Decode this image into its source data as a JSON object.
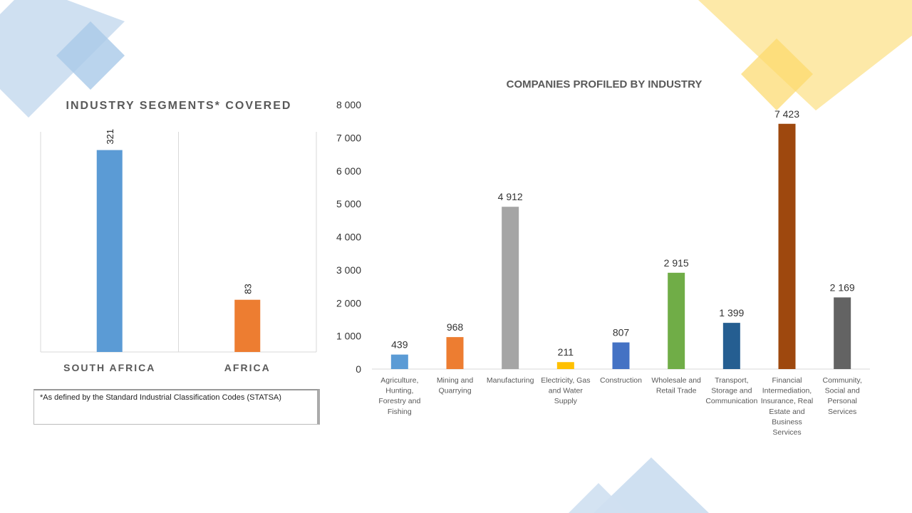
{
  "chart_data": [
    {
      "type": "bar",
      "title": "INDUSTRY SEGMENTS* COVERED",
      "categories": [
        "SOUTH AFRICA",
        "AFRICA"
      ],
      "values": [
        321,
        83
      ],
      "data_labels": [
        "321",
        "83"
      ],
      "colors": [
        "#5b9bd5",
        "#ed7d31"
      ],
      "ylim": [
        0,
        350
      ],
      "grid": false
    },
    {
      "type": "bar",
      "title": "COMPANIES PROFILED BY INDUSTRY",
      "categories": [
        "Agriculture, Hunting, Forestry and Fishing",
        "Mining and Quarrying",
        "Manufacturing",
        "Electricity, Gas and Water Supply",
        "Construction",
        "Wholesale and Retail Trade",
        "Transport, Storage and Communication",
        "Financial Intermediation, Insurance, Real Estate and Business Services",
        "Community, Social and Personal Services"
      ],
      "category_lines": [
        [
          "Agriculture,",
          "Hunting,",
          "Forestry and",
          "Fishing"
        ],
        [
          "Mining and",
          "Quarrying"
        ],
        [
          "Manufacturing"
        ],
        [
          "Electricity, Gas",
          "and Water",
          "Supply"
        ],
        [
          "Construction"
        ],
        [
          "Wholesale and",
          "Retail Trade"
        ],
        [
          "Transport,",
          "Storage and",
          "Communication"
        ],
        [
          "Financial",
          "Intermediation,",
          "Insurance, Real",
          "Estate and",
          "Business",
          "Services"
        ],
        [
          "Community,",
          "Social and",
          "Personal",
          "Services"
        ]
      ],
      "values": [
        439,
        968,
        4912,
        211,
        807,
        2915,
        1399,
        7423,
        2169
      ],
      "data_labels": [
        "439",
        "968",
        "4 912",
        "211",
        "807",
        "2 915",
        "1 399",
        "7 423",
        "2 169"
      ],
      "colors": [
        "#5b9bd5",
        "#ed7d31",
        "#a5a5a5",
        "#ffc000",
        "#4472c4",
        "#70ad47",
        "#255e91",
        "#9e480e",
        "#636363"
      ],
      "ylim": [
        0,
        8000
      ],
      "yticks": [
        "0",
        "1 000",
        "2 000",
        "3 000",
        "4 000",
        "5 000",
        "6 000",
        "7 000",
        "8 000"
      ],
      "grid": false
    }
  ],
  "footnote": "*As defined by the Standard Industrial Classification Codes (STATSA)",
  "colors": {
    "deco_blue": "#cfe0f1",
    "deco_yellow": "#fde9a8"
  }
}
